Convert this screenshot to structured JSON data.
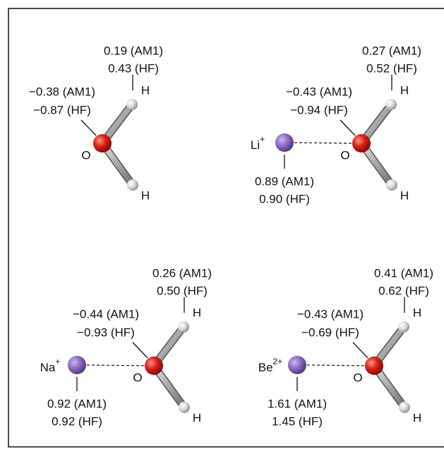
{
  "panels": [
    {
      "atoms": {
        "o": "O",
        "h1": "H",
        "h2": "H"
      },
      "charges": {
        "h": [
          "0.19 (AM1)",
          "0.43 (HF)"
        ],
        "o": [
          "−0.38 (AM1)",
          "−0.87 (HF)"
        ]
      }
    },
    {
      "ion": {
        "symbol": "Li",
        "charge": "+",
        "values": [
          "0.89 (AM1)",
          "0.90 (HF)"
        ]
      },
      "atoms": {
        "o": "O",
        "h1": "H",
        "h2": "H"
      },
      "charges": {
        "h": [
          "0.27 (AM1)",
          "0.52 (HF)"
        ],
        "o": [
          "−0.43 (AM1)",
          "−0.94 (HF)"
        ]
      }
    },
    {
      "ion": {
        "symbol": "Na",
        "charge": "+",
        "values": [
          "0.92 (AM1)",
          "0.92 (HF)"
        ]
      },
      "atoms": {
        "o": "O",
        "h1": "H",
        "h2": "H"
      },
      "charges": {
        "h": [
          "0.26 (AM1)",
          "0.50 (HF)"
        ],
        "o": [
          "−0.44 (AM1)",
          "−0.93 (HF)"
        ]
      }
    },
    {
      "ion": {
        "symbol": "Be",
        "charge": "2+",
        "values": [
          "1.61 (AM1)",
          "1.45 (HF)"
        ]
      },
      "atoms": {
        "o": "O",
        "h1": "H",
        "h2": "H"
      },
      "charges": {
        "h": [
          "0.41 (AM1)",
          "0.62 (HF)"
        ],
        "o": [
          "−0.43 (AM1)",
          "−0.69 (HF)"
        ]
      }
    }
  ]
}
